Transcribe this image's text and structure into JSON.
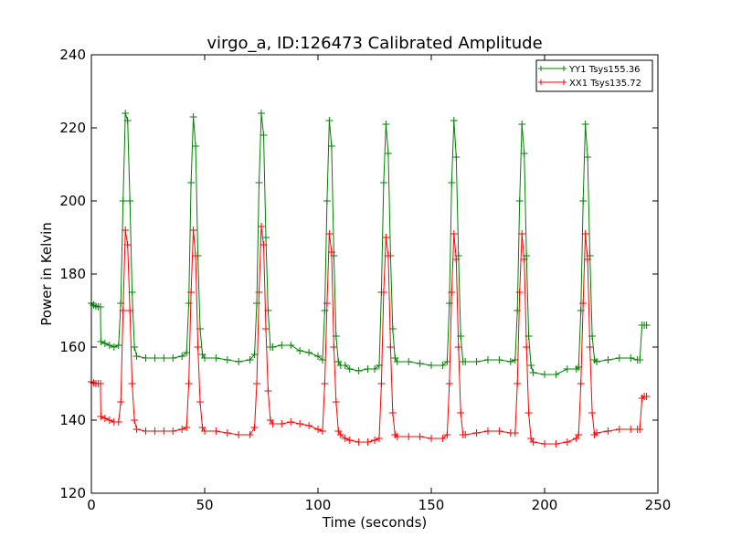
{
  "chart_data": {
    "type": "line",
    "title": "virgo_a, ID:126473 Calibrated Amplitude",
    "xlabel": "Time (seconds)",
    "ylabel": "Power in Kelvin",
    "xlim": [
      0,
      250
    ],
    "ylim": [
      120,
      240
    ],
    "xticks": [
      "0",
      "50",
      "100",
      "150",
      "200",
      "250"
    ],
    "yticks": [
      "120",
      "140",
      "160",
      "180",
      "200",
      "220",
      "240"
    ],
    "grid": false,
    "legend_position": "top-right",
    "marker": "plus",
    "series": [
      {
        "name": "YY1 Tsys155.36",
        "color": "#008000",
        "points": [
          [
            0,
            172
          ],
          [
            1,
            171.5
          ],
          [
            2,
            171.2
          ],
          [
            3,
            171
          ],
          [
            4,
            171
          ],
          [
            4.2,
            161.5
          ],
          [
            6,
            161
          ],
          [
            8,
            160.5
          ],
          [
            10,
            160
          ],
          [
            12,
            160.5
          ],
          [
            13,
            172
          ],
          [
            14,
            200
          ],
          [
            15,
            224
          ],
          [
            16,
            222
          ],
          [
            17,
            200
          ],
          [
            18,
            175
          ],
          [
            19,
            160
          ],
          [
            20,
            157.5
          ],
          [
            24,
            157
          ],
          [
            28,
            157
          ],
          [
            32,
            157
          ],
          [
            36,
            157
          ],
          [
            40,
            157.5
          ],
          [
            42,
            158.5
          ],
          [
            43,
            172
          ],
          [
            44,
            205
          ],
          [
            45,
            223
          ],
          [
            46,
            215
          ],
          [
            47,
            185
          ],
          [
            48,
            165
          ],
          [
            49,
            158
          ],
          [
            50,
            157
          ],
          [
            55,
            157
          ],
          [
            60,
            156.5
          ],
          [
            65,
            156
          ],
          [
            70,
            156.5
          ],
          [
            72,
            158
          ],
          [
            73,
            172
          ],
          [
            74,
            205
          ],
          [
            75,
            224
          ],
          [
            76,
            218
          ],
          [
            77,
            190
          ],
          [
            78,
            170
          ],
          [
            79,
            160
          ],
          [
            80,
            160
          ],
          [
            84,
            160.5
          ],
          [
            88,
            160.5
          ],
          [
            92,
            159
          ],
          [
            96,
            158.5
          ],
          [
            100,
            157.5
          ],
          [
            102,
            156.5
          ],
          [
            103,
            170
          ],
          [
            104,
            200
          ],
          [
            105,
            222
          ],
          [
            106,
            215
          ],
          [
            107,
            185
          ],
          [
            108,
            163
          ],
          [
            109,
            156
          ],
          [
            110,
            155
          ],
          [
            112,
            155
          ],
          [
            114,
            154
          ],
          [
            118,
            153.5
          ],
          [
            122,
            154
          ],
          [
            125,
            154
          ],
          [
            127,
            155
          ],
          [
            128,
            175
          ],
          [
            129,
            205
          ],
          [
            130,
            221
          ],
          [
            131,
            213
          ],
          [
            132,
            185
          ],
          [
            133,
            165
          ],
          [
            134,
            157
          ],
          [
            135,
            156
          ],
          [
            140,
            156
          ],
          [
            145,
            155.5
          ],
          [
            150,
            155
          ],
          [
            155,
            155
          ],
          [
            157,
            156
          ],
          [
            158,
            172
          ],
          [
            159,
            205
          ],
          [
            160,
            222
          ],
          [
            161,
            212
          ],
          [
            162,
            185
          ],
          [
            163,
            163
          ],
          [
            164,
            156
          ],
          [
            165,
            156
          ],
          [
            170,
            156
          ],
          [
            175,
            156.5
          ],
          [
            180,
            156.5
          ],
          [
            185,
            156
          ],
          [
            187,
            156.5
          ],
          [
            188,
            170
          ],
          [
            189,
            200
          ],
          [
            190,
            221
          ],
          [
            191,
            213
          ],
          [
            192,
            185
          ],
          [
            193,
            163
          ],
          [
            194,
            155
          ],
          [
            195,
            153
          ],
          [
            200,
            152.5
          ],
          [
            205,
            152.5
          ],
          [
            210,
            154
          ],
          [
            214,
            154
          ],
          [
            215,
            154.5
          ],
          [
            216,
            170
          ],
          [
            217,
            200
          ],
          [
            218,
            221
          ],
          [
            219,
            212
          ],
          [
            220,
            185
          ],
          [
            221,
            163
          ],
          [
            222,
            156.5
          ],
          [
            223,
            156
          ],
          [
            228,
            156.5
          ],
          [
            233,
            157
          ],
          [
            238,
            157
          ],
          [
            241,
            156.5
          ],
          [
            242,
            156.5
          ],
          [
            243,
            166
          ],
          [
            244,
            166
          ],
          [
            245,
            166
          ]
        ]
      },
      {
        "name": "XX1 Tsys135.72",
        "color": "#ff0000",
        "points": [
          [
            0,
            150.5
          ],
          [
            1,
            150.2
          ],
          [
            2,
            150
          ],
          [
            3,
            150
          ],
          [
            4,
            150
          ],
          [
            4.2,
            141
          ],
          [
            6,
            140.5
          ],
          [
            8,
            140
          ],
          [
            10,
            139.5
          ],
          [
            12,
            139.5
          ],
          [
            13,
            145
          ],
          [
            14,
            170
          ],
          [
            15,
            192
          ],
          [
            16,
            188
          ],
          [
            17,
            170
          ],
          [
            18,
            150
          ],
          [
            19,
            140
          ],
          [
            20,
            137.5
          ],
          [
            24,
            137
          ],
          [
            28,
            137
          ],
          [
            32,
            137
          ],
          [
            36,
            137
          ],
          [
            40,
            137.5
          ],
          [
            42,
            138
          ],
          [
            43,
            150
          ],
          [
            44,
            175
          ],
          [
            45,
            192
          ],
          [
            46,
            185
          ],
          [
            47,
            160
          ],
          [
            48,
            145
          ],
          [
            49,
            138
          ],
          [
            50,
            137
          ],
          [
            55,
            137
          ],
          [
            60,
            136.5
          ],
          [
            65,
            136
          ],
          [
            70,
            136
          ],
          [
            72,
            138
          ],
          [
            73,
            150
          ],
          [
            74,
            175
          ],
          [
            75,
            193
          ],
          [
            76,
            188
          ],
          [
            77,
            165
          ],
          [
            78,
            148
          ],
          [
            79,
            140
          ],
          [
            80,
            139
          ],
          [
            84,
            139
          ],
          [
            88,
            139.5
          ],
          [
            92,
            139
          ],
          [
            96,
            138.5
          ],
          [
            100,
            137.5
          ],
          [
            102,
            137
          ],
          [
            103,
            150
          ],
          [
            104,
            172
          ],
          [
            105,
            191
          ],
          [
            106,
            186
          ],
          [
            107,
            160
          ],
          [
            108,
            145
          ],
          [
            109,
            137
          ],
          [
            110,
            136
          ],
          [
            112,
            135
          ],
          [
            114,
            134.5
          ],
          [
            118,
            134
          ],
          [
            122,
            134
          ],
          [
            125,
            134.5
          ],
          [
            127,
            135
          ],
          [
            128,
            150
          ],
          [
            129,
            175
          ],
          [
            130,
            190
          ],
          [
            131,
            185
          ],
          [
            132,
            160
          ],
          [
            133,
            142
          ],
          [
            134,
            136
          ],
          [
            135,
            135.5
          ],
          [
            140,
            135.5
          ],
          [
            145,
            135.5
          ],
          [
            150,
            135
          ],
          [
            155,
            135
          ],
          [
            157,
            136
          ],
          [
            158,
            150
          ],
          [
            159,
            175
          ],
          [
            160,
            191
          ],
          [
            161,
            184
          ],
          [
            162,
            160
          ],
          [
            163,
            142
          ],
          [
            164,
            136
          ],
          [
            165,
            136
          ],
          [
            170,
            136.5
          ],
          [
            175,
            137
          ],
          [
            180,
            137
          ],
          [
            185,
            136.5
          ],
          [
            187,
            136.5
          ],
          [
            188,
            150
          ],
          [
            189,
            175
          ],
          [
            190,
            191
          ],
          [
            191,
            184
          ],
          [
            192,
            160
          ],
          [
            193,
            142
          ],
          [
            194,
            135
          ],
          [
            195,
            134
          ],
          [
            200,
            133.5
          ],
          [
            205,
            133.5
          ],
          [
            210,
            134
          ],
          [
            214,
            135
          ],
          [
            215,
            136
          ],
          [
            216,
            150
          ],
          [
            217,
            172
          ],
          [
            218,
            191
          ],
          [
            219,
            184
          ],
          [
            220,
            160
          ],
          [
            221,
            142
          ],
          [
            222,
            136
          ],
          [
            223,
            136.5
          ],
          [
            228,
            137
          ],
          [
            233,
            137.5
          ],
          [
            238,
            137.5
          ],
          [
            241,
            137.5
          ],
          [
            242,
            137.5
          ],
          [
            243,
            146
          ],
          [
            244,
            146.5
          ],
          [
            245,
            146.5
          ]
        ]
      }
    ]
  }
}
